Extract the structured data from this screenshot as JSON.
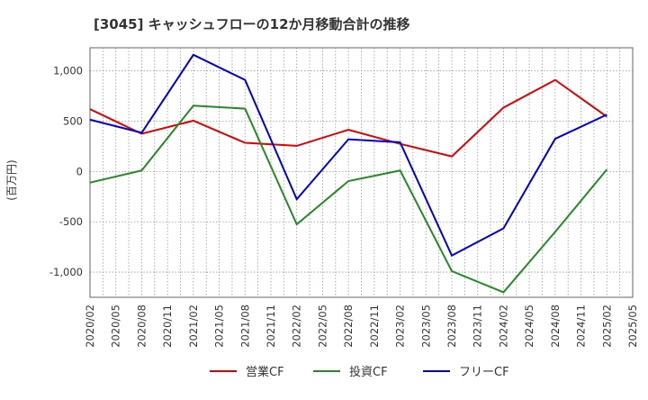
{
  "chart_data": {
    "type": "line",
    "title": "[3045]  キャッシュフローの12か月移動合計の推移",
    "ylabel": "(百万円)",
    "xlabel": "",
    "ylim": [
      -1250,
      1230
    ],
    "yticks": [
      1000,
      500,
      0,
      -500,
      -1000
    ],
    "ytick_labels": [
      "1,000",
      "500",
      "0",
      "-500",
      "-1,000"
    ],
    "categories": [
      "2020/02",
      "2020/05",
      "2020/08",
      "2020/11",
      "2021/02",
      "2021/05",
      "2021/08",
      "2021/11",
      "2022/02",
      "2022/05",
      "2022/08",
      "2022/11",
      "2023/02",
      "2023/05",
      "2023/08",
      "2023/11",
      "2024/02",
      "2024/05",
      "2024/08",
      "2024/11",
      "2025/02",
      "2025/05"
    ],
    "grid": true,
    "legend_position": "bottom",
    "series": [
      {
        "name": "営業CF",
        "color": "#e00000",
        "points": [
          {
            "x": "2020/02",
            "y": 620
          },
          {
            "x": "2020/08",
            "y": 375
          },
          {
            "x": "2021/02",
            "y": 505
          },
          {
            "x": "2021/08",
            "y": 285
          },
          {
            "x": "2022/02",
            "y": 255
          },
          {
            "x": "2022/08",
            "y": 415
          },
          {
            "x": "2023/02",
            "y": 275
          },
          {
            "x": "2023/08",
            "y": 150
          },
          {
            "x": "2024/02",
            "y": 635
          },
          {
            "x": "2024/08",
            "y": 910
          },
          {
            "x": "2025/02",
            "y": 545
          }
        ]
      },
      {
        "name": "投資CF",
        "color": "#228b22",
        "points": [
          {
            "x": "2020/02",
            "y": -110
          },
          {
            "x": "2020/08",
            "y": 10
          },
          {
            "x": "2021/02",
            "y": 655
          },
          {
            "x": "2021/08",
            "y": 625
          },
          {
            "x": "2022/02",
            "y": -525
          },
          {
            "x": "2022/08",
            "y": -95
          },
          {
            "x": "2023/02",
            "y": 10
          },
          {
            "x": "2023/08",
            "y": -990
          },
          {
            "x": "2024/02",
            "y": -1200
          },
          {
            "x": "2024/08",
            "y": -600
          },
          {
            "x": "2025/02",
            "y": 20
          }
        ]
      },
      {
        "name": "フリーCF",
        "color": "#0000dd",
        "points": [
          {
            "x": "2020/02",
            "y": 515
          },
          {
            "x": "2020/08",
            "y": 385
          },
          {
            "x": "2021/02",
            "y": 1160
          },
          {
            "x": "2021/08",
            "y": 910
          },
          {
            "x": "2022/02",
            "y": -275
          },
          {
            "x": "2022/08",
            "y": 320
          },
          {
            "x": "2023/02",
            "y": 290
          },
          {
            "x": "2023/08",
            "y": -835
          },
          {
            "x": "2024/02",
            "y": -565
          },
          {
            "x": "2024/08",
            "y": 325
          },
          {
            "x": "2025/02",
            "y": 565
          }
        ]
      }
    ]
  }
}
